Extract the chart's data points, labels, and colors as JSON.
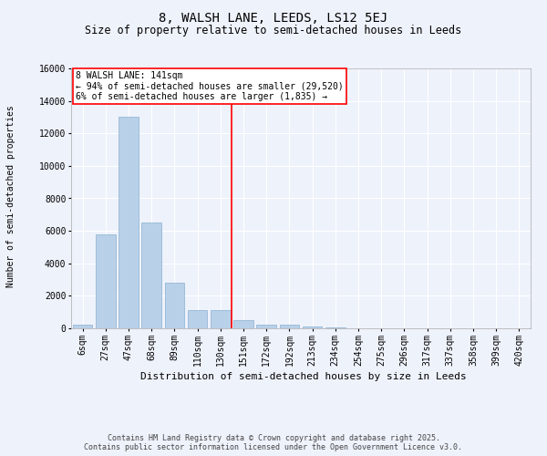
{
  "title_line1": "8, WALSH LANE, LEEDS, LS12 5EJ",
  "title_line2": "Size of property relative to semi-detached houses in Leeds",
  "xlabel": "Distribution of semi-detached houses by size in Leeds",
  "ylabel": "Number of semi-detached properties",
  "categories": [
    "6sqm",
    "27sqm",
    "47sqm",
    "68sqm",
    "89sqm",
    "110sqm",
    "130sqm",
    "151sqm",
    "172sqm",
    "192sqm",
    "213sqm",
    "234sqm",
    "254sqm",
    "275sqm",
    "296sqm",
    "317sqm",
    "337sqm",
    "358sqm",
    "399sqm",
    "420sqm"
  ],
  "values": [
    200,
    5800,
    13000,
    6500,
    2800,
    1100,
    1100,
    500,
    250,
    200,
    100,
    30,
    20,
    10,
    5,
    2,
    2,
    1,
    1,
    1
  ],
  "bar_color": "#b8d0e8",
  "bar_edge_color": "#8ab0d0",
  "vline_index": 7,
  "vline_color": "red",
  "annotation_title": "8 WALSH LANE: 141sqm",
  "annotation_line2": "← 94% of semi-detached houses are smaller (29,520)",
  "annotation_line3": "6% of semi-detached houses are larger (1,835) →",
  "ylim": [
    0,
    16000
  ],
  "yticks": [
    0,
    2000,
    4000,
    6000,
    8000,
    10000,
    12000,
    14000,
    16000
  ],
  "footer1": "Contains HM Land Registry data © Crown copyright and database right 2025.",
  "footer2": "Contains public sector information licensed under the Open Government Licence v3.0.",
  "bg_color": "#eef2fb",
  "grid_color": "#ffffff",
  "title1_fontsize": 10,
  "title2_fontsize": 8.5,
  "xlabel_fontsize": 8,
  "ylabel_fontsize": 7,
  "tick_fontsize": 7,
  "ann_fontsize": 7,
  "footer_fontsize": 6
}
